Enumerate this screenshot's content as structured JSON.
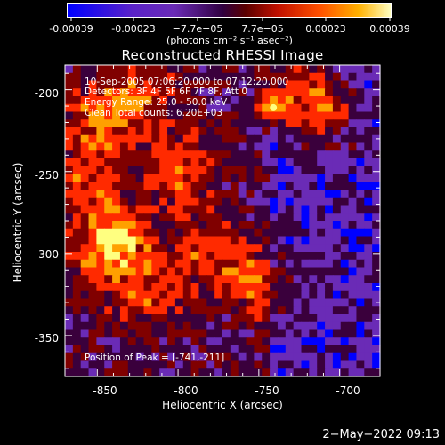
{
  "colorbar": {
    "ticks": [
      "-0.00039",
      "-0.00023",
      "−7.7e−05",
      "7.7e−05",
      "0.00023",
      "0.00039"
    ],
    "units": "(photons cm⁻² s⁻¹ asec⁻²)"
  },
  "chart_data": {
    "type": "heatmap",
    "title": "Reconstructed RHESSI Image",
    "xlabel": "Heliocentric X (arcsec)",
    "ylabel": "Heliocentric Y (arcsec)",
    "xlim": [
      -870,
      -675
    ],
    "ylim": [
      -375,
      -185
    ],
    "xticks": [
      -850,
      -800,
      -750,
      -700
    ],
    "yticks": [
      -200,
      -250,
      -300,
      -350
    ],
    "annotations": [
      "10-Sep-2005 07:06:20.000 to 07:12:20.000",
      "Detectors: 3F 4F 5F 6F 7F 8F, Att 0",
      "Energy Range: 25.0 - 50.0 keV",
      "Clean     Total counts: 6.20E+03"
    ],
    "peak_label": "Position of Peak = [-741,-211]",
    "peak": [
      -741,
      -211
    ],
    "colormap": [
      "#0000ff",
      "#6a2bb6",
      "#3a003c",
      "#800000",
      "#ff2a00",
      "#ffa000",
      "#ffff80"
    ],
    "value_range": [
      -0.00039,
      0.00039
    ]
  },
  "footer": {
    "timestamp": "2−May−2022 09:13"
  }
}
